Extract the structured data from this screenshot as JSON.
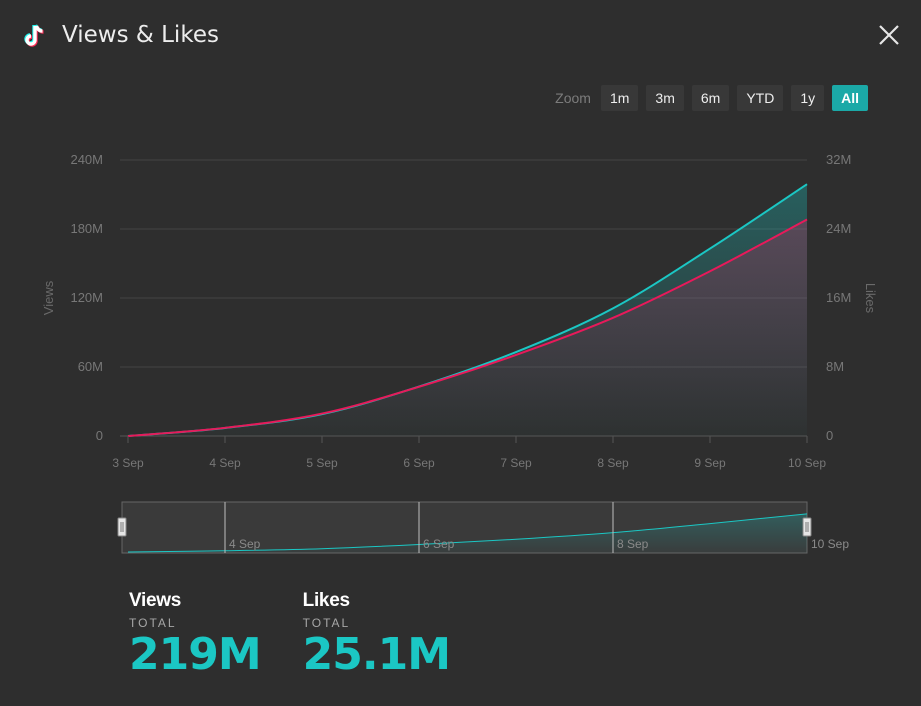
{
  "header": {
    "title": "Views & Likes",
    "app_icon": "tiktok-logo-icon",
    "close_icon": "close-icon"
  },
  "zoom": {
    "label": "Zoom",
    "options": [
      "1m",
      "3m",
      "6m",
      "YTD",
      "1y",
      "All"
    ],
    "active": "All"
  },
  "chart_data": {
    "type": "area",
    "x": [
      "3 Sep",
      "4 Sep",
      "5 Sep",
      "6 Sep",
      "7 Sep",
      "8 Sep",
      "9 Sep",
      "10 Sep"
    ],
    "series": [
      {
        "name": "Views",
        "axis": "left",
        "color": "#1bc7c4",
        "values": [
          0,
          7,
          19,
          43,
          73,
          111,
          163,
          219
        ]
      },
      {
        "name": "Likes",
        "axis": "right",
        "color": "#e8195a",
        "values": [
          0,
          0.95,
          2.6,
          5.7,
          9.4,
          13.7,
          19.1,
          25.1
        ]
      }
    ],
    "y_left": {
      "label": "Views",
      "ticks": [
        "0",
        "60M",
        "120M",
        "180M",
        "240M"
      ],
      "range": [
        0,
        240
      ]
    },
    "y_right": {
      "label": "Likes",
      "ticks": [
        "0",
        "8M",
        "16M",
        "24M",
        "32M"
      ],
      "range": [
        0,
        32
      ]
    },
    "grid": true,
    "navigator": {
      "ticks": [
        "4 Sep",
        "6 Sep",
        "8 Sep",
        "10 Sep"
      ]
    }
  },
  "stats": [
    {
      "name": "Views",
      "sub": "TOTAL",
      "value": "219M"
    },
    {
      "name": "Likes",
      "sub": "TOTAL",
      "value": "25.1M"
    }
  ]
}
